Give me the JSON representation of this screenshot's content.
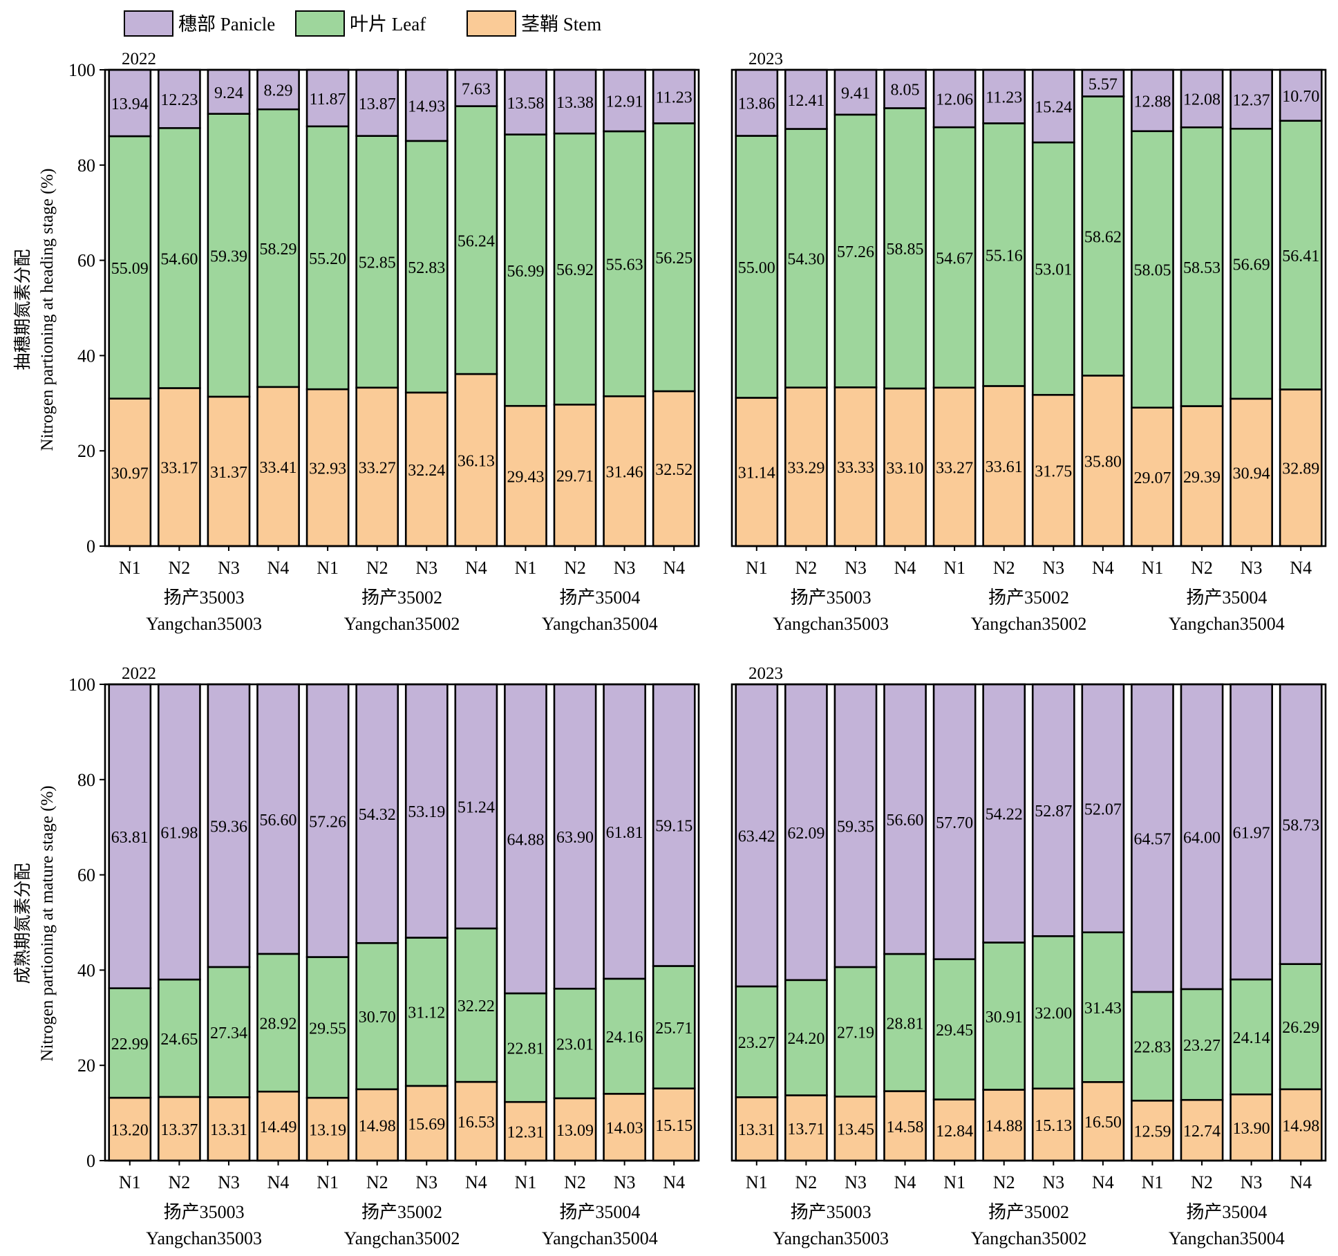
{
  "colors": {
    "panicle": "#c3b3d8",
    "leaf": "#9ed69c",
    "stem": "#facb97",
    "stroke": "#000000"
  },
  "legend": {
    "items": [
      {
        "key": "panicle",
        "label": "穗部 Panicle"
      },
      {
        "key": "leaf",
        "label": "叶片 Leaf"
      },
      {
        "key": "stem",
        "label": "茎鞘 Stem"
      }
    ],
    "placement": "top-left"
  },
  "y_axes": {
    "heading": {
      "label_zh": "抽穗期氮素分配",
      "label_en": "Nitrogen partioning at heading stage (%)"
    },
    "mature": {
      "label_zh": "成熟期氮素分配",
      "label_en": "Nitrogen partioning at mature stage (%)"
    }
  },
  "chart_data": [
    {
      "type": "bar",
      "stacked": true,
      "stage": "heading",
      "year_label": "2022",
      "ylim": [
        0,
        100
      ],
      "yticks": [
        "0",
        "20",
        "40",
        "60",
        "80",
        "100"
      ],
      "categories": [
        "N1",
        "N2",
        "N3",
        "N4",
        "N1",
        "N2",
        "N3",
        "N4",
        "N1",
        "N2",
        "N3",
        "N4"
      ],
      "groups": [
        {
          "zh": "扬产35003",
          "en": "Yangchan35003"
        },
        {
          "zh": "扬产35002",
          "en": "Yangchan35002"
        },
        {
          "zh": "扬产35004",
          "en": "Yangchan35004"
        }
      ],
      "series": [
        {
          "name": "茎鞘 Stem",
          "key": "stem",
          "values": [
            "30.97",
            "33.17",
            "31.37",
            "33.41",
            "32.93",
            "33.27",
            "32.24",
            "36.13",
            "29.43",
            "29.71",
            "31.46",
            "32.52"
          ]
        },
        {
          "name": "叶片 Leaf",
          "key": "leaf",
          "values": [
            "55.09",
            "54.60",
            "59.39",
            "58.29",
            "55.20",
            "52.85",
            "52.83",
            "56.24",
            "56.99",
            "56.92",
            "55.63",
            "56.25"
          ]
        },
        {
          "name": "穗部 Panicle",
          "key": "panicle",
          "values": [
            "13.94",
            "12.23",
            "9.24",
            "8.29",
            "11.87",
            "13.87",
            "14.93",
            "7.63",
            "13.58",
            "13.38",
            "12.91",
            "11.23"
          ]
        }
      ]
    },
    {
      "type": "bar",
      "stacked": true,
      "stage": "heading",
      "year_label": "2023",
      "ylim": [
        0,
        100
      ],
      "yticks": [],
      "categories": [
        "N1",
        "N2",
        "N3",
        "N4",
        "N1",
        "N2",
        "N3",
        "N4",
        "N1",
        "N2",
        "N3",
        "N4"
      ],
      "groups": [
        {
          "zh": "扬产35003",
          "en": "Yangchan35003"
        },
        {
          "zh": "扬产35002",
          "en": "Yangchan35002"
        },
        {
          "zh": "扬产35004",
          "en": "Yangchan35004"
        }
      ],
      "series": [
        {
          "name": "茎鞘 Stem",
          "key": "stem",
          "values": [
            "31.14",
            "33.29",
            "33.33",
            "33.10",
            "33.27",
            "33.61",
            "31.75",
            "35.80",
            "29.07",
            "29.39",
            "30.94",
            "32.89"
          ]
        },
        {
          "name": "叶片 Leaf",
          "key": "leaf",
          "values": [
            "55.00",
            "54.30",
            "57.26",
            "58.85",
            "54.67",
            "55.16",
            "53.01",
            "58.62",
            "58.05",
            "58.53",
            "56.69",
            "56.41"
          ]
        },
        {
          "name": "穗部 Panicle",
          "key": "panicle",
          "values": [
            "13.86",
            "12.41",
            "9.41",
            "8.05",
            "12.06",
            "11.23",
            "15.24",
            "5.57",
            "12.88",
            "12.08",
            "12.37",
            "10.70"
          ]
        }
      ]
    },
    {
      "type": "bar",
      "stacked": true,
      "stage": "mature",
      "year_label": "2022",
      "ylim": [
        0,
        100
      ],
      "yticks": [
        "0",
        "20",
        "40",
        "60",
        "80",
        "100"
      ],
      "categories": [
        "N1",
        "N2",
        "N3",
        "N4",
        "N1",
        "N2",
        "N3",
        "N4",
        "N1",
        "N2",
        "N3",
        "N4"
      ],
      "groups": [
        {
          "zh": "扬产35003",
          "en": "Yangchan35003"
        },
        {
          "zh": "扬产35002",
          "en": "Yangchan35002"
        },
        {
          "zh": "扬产35004",
          "en": "Yangchan35004"
        }
      ],
      "series": [
        {
          "name": "茎鞘 Stem",
          "key": "stem",
          "values": [
            "13.20",
            "13.37",
            "13.31",
            "14.49",
            "13.19",
            "14.98",
            "15.69",
            "16.53",
            "12.31",
            "13.09",
            "14.03",
            "15.15"
          ]
        },
        {
          "name": "叶片 Leaf",
          "key": "leaf",
          "values": [
            "22.99",
            "24.65",
            "27.34",
            "28.92",
            "29.55",
            "30.70",
            "31.12",
            "32.22",
            "22.81",
            "23.01",
            "24.16",
            "25.71"
          ]
        },
        {
          "name": "穗部 Panicle",
          "key": "panicle",
          "values": [
            "63.81",
            "61.98",
            "59.36",
            "56.60",
            "57.26",
            "54.32",
            "53.19",
            "51.24",
            "64.88",
            "63.90",
            "61.81",
            "59.15"
          ]
        }
      ]
    },
    {
      "type": "bar",
      "stacked": true,
      "stage": "mature",
      "year_label": "2023",
      "ylim": [
        0,
        100
      ],
      "yticks": [],
      "categories": [
        "N1",
        "N2",
        "N3",
        "N4",
        "N1",
        "N2",
        "N3",
        "N4",
        "N1",
        "N2",
        "N3",
        "N4"
      ],
      "groups": [
        {
          "zh": "扬产35003",
          "en": "Yangchan35003"
        },
        {
          "zh": "扬产35002",
          "en": "Yangchan35002"
        },
        {
          "zh": "扬产35004",
          "en": "Yangchan35004"
        }
      ],
      "series": [
        {
          "name": "茎鞘 Stem",
          "key": "stem",
          "values": [
            "13.31",
            "13.71",
            "13.45",
            "14.58",
            "12.84",
            "14.88",
            "15.13",
            "16.50",
            "12.59",
            "12.74",
            "13.90",
            "14.98"
          ]
        },
        {
          "name": "叶片 Leaf",
          "key": "leaf",
          "values": [
            "23.27",
            "24.20",
            "27.19",
            "28.81",
            "29.45",
            "30.91",
            "32.00",
            "31.43",
            "22.83",
            "23.27",
            "24.14",
            "26.29"
          ]
        },
        {
          "name": "穗部 Panicle",
          "key": "panicle",
          "values": [
            "63.42",
            "62.09",
            "59.35",
            "56.60",
            "57.70",
            "54.22",
            "52.87",
            "52.07",
            "64.57",
            "64.00",
            "61.97",
            "58.73"
          ]
        }
      ]
    }
  ]
}
